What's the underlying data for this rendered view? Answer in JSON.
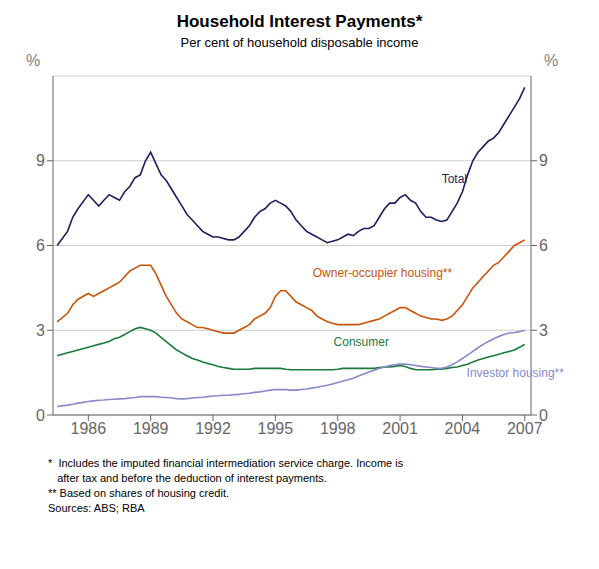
{
  "chart_data": {
    "type": "line",
    "title": "Household Interest Payments*",
    "subtitle": "Per cent of household disposable income",
    "ylabel": "%",
    "y2label": "%",
    "footnotes": "*  Includes the imputed financial intermediation service charge. Income is\n   after tax and before the deduction of interest payments.\n** Based on shares of housing credit.\nSources: ABS; RBA",
    "x": [
      1984.5,
      1985.0,
      1985.25,
      1985.5,
      1986.0,
      1986.25,
      1986.5,
      1986.75,
      1987.0,
      1987.25,
      1987.5,
      1987.75,
      1988.0,
      1988.25,
      1988.5,
      1988.75,
      1989.0,
      1989.25,
      1989.5,
      1989.75,
      1990.0,
      1990.25,
      1990.5,
      1990.75,
      1991.0,
      1991.25,
      1991.5,
      1991.75,
      1992.0,
      1992.25,
      1992.5,
      1992.75,
      1993.0,
      1993.25,
      1993.5,
      1993.75,
      1994.0,
      1994.25,
      1994.5,
      1994.75,
      1995.0,
      1995.25,
      1995.5,
      1995.75,
      1996.0,
      1996.25,
      1996.5,
      1996.75,
      1997.0,
      1997.25,
      1997.5,
      1997.75,
      1998.0,
      1998.25,
      1998.5,
      1998.75,
      1999.0,
      1999.25,
      1999.5,
      1999.75,
      2000.0,
      2000.25,
      2000.5,
      2000.75,
      2001.0,
      2001.25,
      2001.5,
      2001.75,
      2002.0,
      2002.25,
      2002.5,
      2002.75,
      2003.0,
      2003.25,
      2003.5,
      2003.75,
      2004.0,
      2004.25,
      2004.5,
      2004.75,
      2005.0,
      2005.25,
      2005.5,
      2005.75,
      2006.0,
      2006.25,
      2006.5,
      2006.75,
      2007.0
    ],
    "series": [
      {
        "name": "Total",
        "color": "#1c1f5c",
        "values": [
          6.0,
          6.5,
          7.0,
          7.3,
          7.8,
          7.6,
          7.4,
          7.6,
          7.8,
          7.7,
          7.6,
          7.9,
          8.1,
          8.4,
          8.5,
          9.0,
          9.3,
          8.9,
          8.5,
          8.3,
          8.0,
          7.7,
          7.4,
          7.1,
          6.9,
          6.7,
          6.5,
          6.4,
          6.3,
          6.3,
          6.25,
          6.2,
          6.2,
          6.3,
          6.5,
          6.7,
          7.0,
          7.2,
          7.3,
          7.5,
          7.6,
          7.5,
          7.4,
          7.2,
          6.9,
          6.7,
          6.5,
          6.4,
          6.3,
          6.2,
          6.1,
          6.15,
          6.2,
          6.3,
          6.4,
          6.35,
          6.5,
          6.6,
          6.6,
          6.7,
          7.0,
          7.3,
          7.5,
          7.5,
          7.7,
          7.8,
          7.6,
          7.5,
          7.2,
          7.0,
          7.0,
          6.9,
          6.85,
          6.9,
          7.2,
          7.5,
          7.9,
          8.5,
          9.0,
          9.3,
          9.5,
          9.7,
          9.8,
          10.0,
          10.3,
          10.6,
          10.9,
          11.2,
          11.6
        ]
      },
      {
        "name": "Owner-occupier housing**",
        "color": "#c8540a",
        "values": [
          3.3,
          3.6,
          3.9,
          4.1,
          4.3,
          4.2,
          4.3,
          4.4,
          4.5,
          4.6,
          4.7,
          4.9,
          5.1,
          5.2,
          5.3,
          5.3,
          5.3,
          5.0,
          4.6,
          4.2,
          3.9,
          3.6,
          3.4,
          3.3,
          3.2,
          3.1,
          3.1,
          3.05,
          3.0,
          2.95,
          2.9,
          2.9,
          2.9,
          3.0,
          3.1,
          3.2,
          3.4,
          3.5,
          3.6,
          3.8,
          4.2,
          4.4,
          4.4,
          4.2,
          4.0,
          3.9,
          3.8,
          3.7,
          3.5,
          3.4,
          3.3,
          3.25,
          3.2,
          3.2,
          3.2,
          3.2,
          3.2,
          3.25,
          3.3,
          3.35,
          3.4,
          3.5,
          3.6,
          3.7,
          3.8,
          3.8,
          3.7,
          3.6,
          3.5,
          3.45,
          3.4,
          3.4,
          3.35,
          3.4,
          3.5,
          3.7,
          3.9,
          4.2,
          4.5,
          4.7,
          4.9,
          5.1,
          5.3,
          5.4,
          5.6,
          5.8,
          6.0,
          6.1,
          6.2
        ]
      },
      {
        "name": "Consumer",
        "color": "#1a7a3a",
        "values": [
          2.1,
          2.2,
          2.25,
          2.3,
          2.4,
          2.45,
          2.5,
          2.55,
          2.6,
          2.7,
          2.75,
          2.85,
          2.95,
          3.05,
          3.1,
          3.05,
          3.0,
          2.9,
          2.75,
          2.6,
          2.45,
          2.3,
          2.2,
          2.1,
          2.0,
          1.95,
          1.88,
          1.82,
          1.78,
          1.72,
          1.68,
          1.65,
          1.62,
          1.62,
          1.62,
          1.62,
          1.65,
          1.65,
          1.65,
          1.65,
          1.65,
          1.65,
          1.62,
          1.6,
          1.6,
          1.6,
          1.6,
          1.6,
          1.6,
          1.6,
          1.6,
          1.6,
          1.62,
          1.65,
          1.65,
          1.65,
          1.65,
          1.65,
          1.65,
          1.65,
          1.68,
          1.7,
          1.7,
          1.72,
          1.75,
          1.72,
          1.65,
          1.6,
          1.6,
          1.6,
          1.6,
          1.62,
          1.62,
          1.65,
          1.68,
          1.7,
          1.75,
          1.8,
          1.88,
          1.95,
          2.0,
          2.05,
          2.1,
          2.15,
          2.2,
          2.25,
          2.3,
          2.4,
          2.5
        ]
      },
      {
        "name": "Investor housing**",
        "color": "#8888cc",
        "values": [
          0.3,
          0.35,
          0.38,
          0.42,
          0.48,
          0.5,
          0.52,
          0.53,
          0.55,
          0.56,
          0.57,
          0.58,
          0.6,
          0.62,
          0.65,
          0.65,
          0.65,
          0.65,
          0.63,
          0.62,
          0.6,
          0.58,
          0.57,
          0.58,
          0.6,
          0.62,
          0.63,
          0.65,
          0.67,
          0.68,
          0.7,
          0.7,
          0.72,
          0.73,
          0.75,
          0.77,
          0.8,
          0.82,
          0.85,
          0.88,
          0.9,
          0.9,
          0.9,
          0.88,
          0.88,
          0.9,
          0.92,
          0.95,
          0.98,
          1.02,
          1.05,
          1.1,
          1.15,
          1.2,
          1.25,
          1.3,
          1.38,
          1.45,
          1.52,
          1.58,
          1.65,
          1.7,
          1.75,
          1.78,
          1.8,
          1.8,
          1.78,
          1.75,
          1.72,
          1.7,
          1.68,
          1.65,
          1.65,
          1.7,
          1.78,
          1.88,
          2.0,
          2.12,
          2.25,
          2.38,
          2.5,
          2.6,
          2.7,
          2.78,
          2.85,
          2.9,
          2.92,
          2.95,
          3.0
        ]
      }
    ],
    "annotations": [
      {
        "text": "Total",
        "x": 2003.0,
        "y": 8.2
      },
      {
        "text": "Owner-occupier housing**",
        "x": 1996.8,
        "y": 4.9
      },
      {
        "text": "Consumer",
        "x": 1997.8,
        "y": 2.45
      },
      {
        "text": "Investor housing**",
        "x": 2004.2,
        "y": 1.35
      }
    ],
    "xlim": [
      1984.3,
      2007.3
    ],
    "xticks": [
      1986,
      1989,
      1992,
      1995,
      1998,
      2001,
      2004,
      2007
    ],
    "ylim": [
      0,
      12
    ],
    "yticks": [
      0,
      3,
      6,
      9
    ],
    "y2lim": [
      0,
      12
    ],
    "y2ticks": [
      0,
      3,
      6,
      9
    ],
    "grid": true
  }
}
